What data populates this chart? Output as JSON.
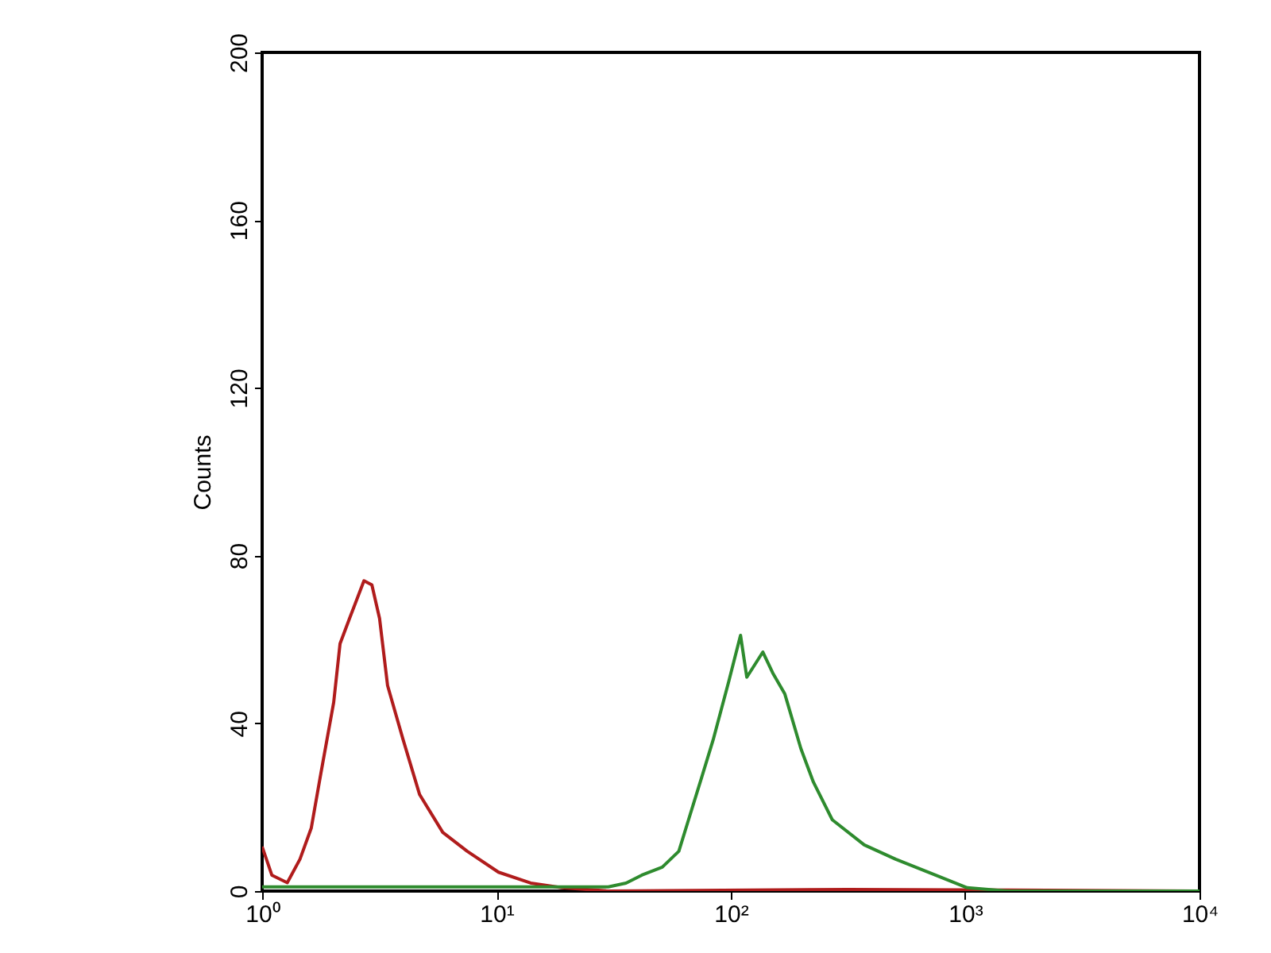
{
  "chart_data": {
    "type": "line",
    "ylabel": "Counts",
    "log": "x",
    "xlim": [
      1,
      10000
    ],
    "xticks": [
      {
        "value": 1,
        "label": "10⁰"
      },
      {
        "value": 10,
        "label": "10¹"
      },
      {
        "value": 100,
        "label": "10²"
      },
      {
        "value": 1000,
        "label": "10³"
      },
      {
        "value": 10000,
        "label": "10⁴"
      }
    ],
    "ylim": [
      0,
      200
    ],
    "yticks": [
      0,
      40,
      80,
      120,
      160,
      200
    ],
    "grid": false,
    "series": [
      {
        "color": "#b01c1c",
        "x": [
          1.0,
          1.1,
          1.28,
          1.45,
          1.62,
          1.78,
          2.02,
          2.15,
          2.36,
          2.72,
          2.94,
          3.17,
          3.43,
          4.0,
          4.7,
          5.9,
          7.5,
          10.2,
          14,
          19,
          30,
          316,
          10000
        ],
        "values": [
          10.6,
          3.8,
          2,
          7.6,
          15,
          28,
          45,
          59,
          65,
          74,
          73,
          65,
          49,
          36,
          23,
          14,
          9.5,
          4.5,
          1.9,
          0.8,
          0,
          0.4,
          0
        ]
      },
      {
        "color": "#2e8b2e",
        "x": [
          1.0,
          30,
          35.7,
          41.7,
          51,
          60,
          66,
          75,
          84,
          98,
          110,
          117,
          137,
          151,
          170,
          199,
          225,
          271,
          371,
          505,
          747,
          1020,
          1510,
          10000
        ],
        "values": [
          1,
          1,
          1.9,
          3.8,
          5.7,
          9.5,
          17,
          27,
          36,
          50,
          61,
          51,
          57,
          52,
          47,
          34,
          26,
          17,
          11,
          7.6,
          3.8,
          0.8,
          0,
          0
        ]
      }
    ]
  }
}
